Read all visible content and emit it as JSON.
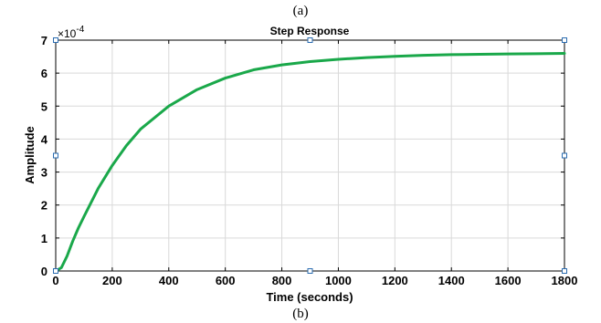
{
  "top_caption": "(a)",
  "bottom_caption": "(b)",
  "chart_data": {
    "type": "line",
    "title": "Step Response",
    "xlabel": "Time (seconds)",
    "ylabel": "Amplitude",
    "y_multiplier": "×10",
    "y_multiplier_exp": "-4",
    "xlim": [
      0,
      1800
    ],
    "ylim": [
      0,
      7
    ],
    "x_ticks": [
      "0",
      "200",
      "400",
      "600",
      "800",
      "1000",
      "1200",
      "1400",
      "1600",
      "1800"
    ],
    "y_ticks": [
      "0",
      "1",
      "2",
      "3",
      "4",
      "5",
      "6",
      "7"
    ],
    "grid": true,
    "series": [
      {
        "color": "#1aa84a",
        "x": [
          0,
          20,
          40,
          60,
          80,
          100,
          150,
          200,
          250,
          300,
          400,
          500,
          600,
          700,
          800,
          900,
          1000,
          1100,
          1200,
          1300,
          1400,
          1500,
          1600,
          1700,
          1800
        ],
        "y": [
          0,
          0.1,
          0.45,
          0.9,
          1.3,
          1.65,
          2.5,
          3.2,
          3.8,
          4.3,
          5.0,
          5.5,
          5.85,
          6.1,
          6.25,
          6.35,
          6.42,
          6.47,
          6.51,
          6.54,
          6.56,
          6.57,
          6.58,
          6.59,
          6.6
        ]
      }
    ],
    "marker_color": "#2b6cb0"
  }
}
